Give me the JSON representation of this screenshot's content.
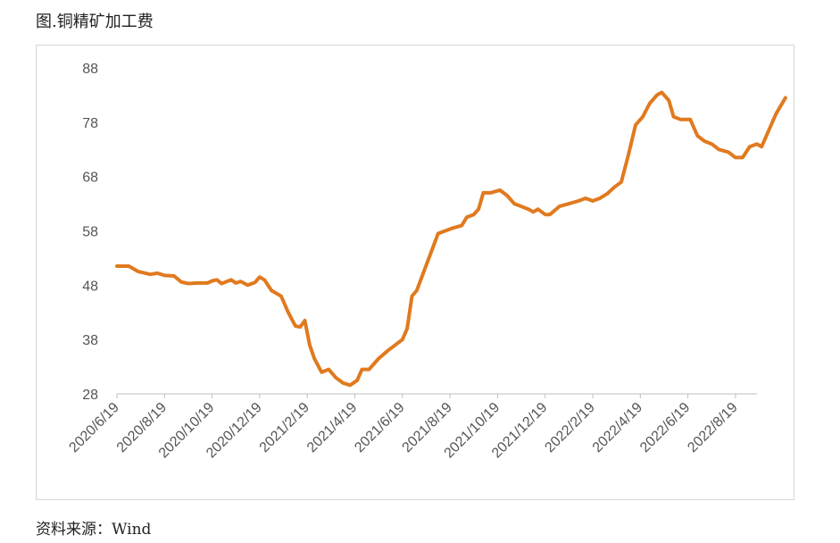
{
  "title": "图.铜精矿加工费",
  "source": "资料来源：Wind",
  "chart_data": {
    "type": "line",
    "title": "",
    "xlabel": "",
    "ylabel": "",
    "ylim": [
      28,
      88
    ],
    "yticks": [
      28,
      38,
      48,
      58,
      68,
      78,
      88
    ],
    "xticks": [
      "2020/6/19",
      "2020/8/19",
      "2020/10/19",
      "2020/12/19",
      "2021/2/19",
      "2021/4/19",
      "2021/6/19",
      "2021/8/19",
      "2021/10/19",
      "2021/12/19",
      "2022/2/19",
      "2022/4/19",
      "2022/6/19",
      "2022/8/19"
    ],
    "grid": false,
    "legend": "none",
    "color": "#E07A1F",
    "series": [
      {
        "values": [
          [
            0,
            51.5
          ],
          [
            0.25,
            51.5
          ],
          [
            0.45,
            50.5
          ],
          [
            0.7,
            50.0
          ],
          [
            0.85,
            50.2
          ],
          [
            1.0,
            49.8
          ],
          [
            1.2,
            49.7
          ],
          [
            1.35,
            48.6
          ],
          [
            1.5,
            48.3
          ],
          [
            1.7,
            48.4
          ],
          [
            1.9,
            48.4
          ],
          [
            2.0,
            48.8
          ],
          [
            2.1,
            49.0
          ],
          [
            2.2,
            48.3
          ],
          [
            2.4,
            49.0
          ],
          [
            2.5,
            48.4
          ],
          [
            2.6,
            48.7
          ],
          [
            2.75,
            48.0
          ],
          [
            2.9,
            48.5
          ],
          [
            3.0,
            49.5
          ],
          [
            3.1,
            49.0
          ],
          [
            3.25,
            47.0
          ],
          [
            3.45,
            46.0
          ],
          [
            3.6,
            43.0
          ],
          [
            3.75,
            40.5
          ],
          [
            3.85,
            40.3
          ],
          [
            3.95,
            41.5
          ],
          [
            4.05,
            37.0
          ],
          [
            4.15,
            34.5
          ],
          [
            4.3,
            32.0
          ],
          [
            4.45,
            32.5
          ],
          [
            4.6,
            31.0
          ],
          [
            4.75,
            30.0
          ],
          [
            4.9,
            29.6
          ],
          [
            5.05,
            30.5
          ],
          [
            5.15,
            32.5
          ],
          [
            5.3,
            32.5
          ],
          [
            5.5,
            34.5
          ],
          [
            5.7,
            36.0
          ],
          [
            5.85,
            37.0
          ],
          [
            6.0,
            38.0
          ],
          [
            6.1,
            40.0
          ],
          [
            6.2,
            46.0
          ],
          [
            6.3,
            47.0
          ],
          [
            6.45,
            50.5
          ],
          [
            6.6,
            54.0
          ],
          [
            6.75,
            57.5
          ],
          [
            6.9,
            58.0
          ],
          [
            7.05,
            58.5
          ],
          [
            7.25,
            59.0
          ],
          [
            7.35,
            60.5
          ],
          [
            7.5,
            61.0
          ],
          [
            7.6,
            62.0
          ],
          [
            7.7,
            65.0
          ],
          [
            7.85,
            65.0
          ],
          [
            8.05,
            65.5
          ],
          [
            8.2,
            64.5
          ],
          [
            8.35,
            63.0
          ],
          [
            8.5,
            62.5
          ],
          [
            8.65,
            62.0
          ],
          [
            8.75,
            61.5
          ],
          [
            8.85,
            62.0
          ],
          [
            9.0,
            61.0
          ],
          [
            9.1,
            61.0
          ],
          [
            9.3,
            62.5
          ],
          [
            9.5,
            63.0
          ],
          [
            9.7,
            63.5
          ],
          [
            9.85,
            64.0
          ],
          [
            10.0,
            63.5
          ],
          [
            10.15,
            64.0
          ],
          [
            10.3,
            64.8
          ],
          [
            10.45,
            66.0
          ],
          [
            10.6,
            67.0
          ],
          [
            10.75,
            72.0
          ],
          [
            10.9,
            77.5
          ],
          [
            11.05,
            79.0
          ],
          [
            11.2,
            81.5
          ],
          [
            11.35,
            83.0
          ],
          [
            11.45,
            83.5
          ],
          [
            11.6,
            82.0
          ],
          [
            11.7,
            79.0
          ],
          [
            11.85,
            78.5
          ],
          [
            12.05,
            78.5
          ],
          [
            12.2,
            75.5
          ],
          [
            12.35,
            74.5
          ],
          [
            12.5,
            74.0
          ],
          [
            12.65,
            73.0
          ],
          [
            12.85,
            72.5
          ],
          [
            13.0,
            71.5
          ],
          [
            13.15,
            71.5
          ],
          [
            13.3,
            73.5
          ],
          [
            13.45,
            74.0
          ],
          [
            13.55,
            73.5
          ],
          [
            13.7,
            76.5
          ],
          [
            13.85,
            79.5
          ],
          [
            14.05,
            82.5
          ]
        ]
      }
    ]
  }
}
